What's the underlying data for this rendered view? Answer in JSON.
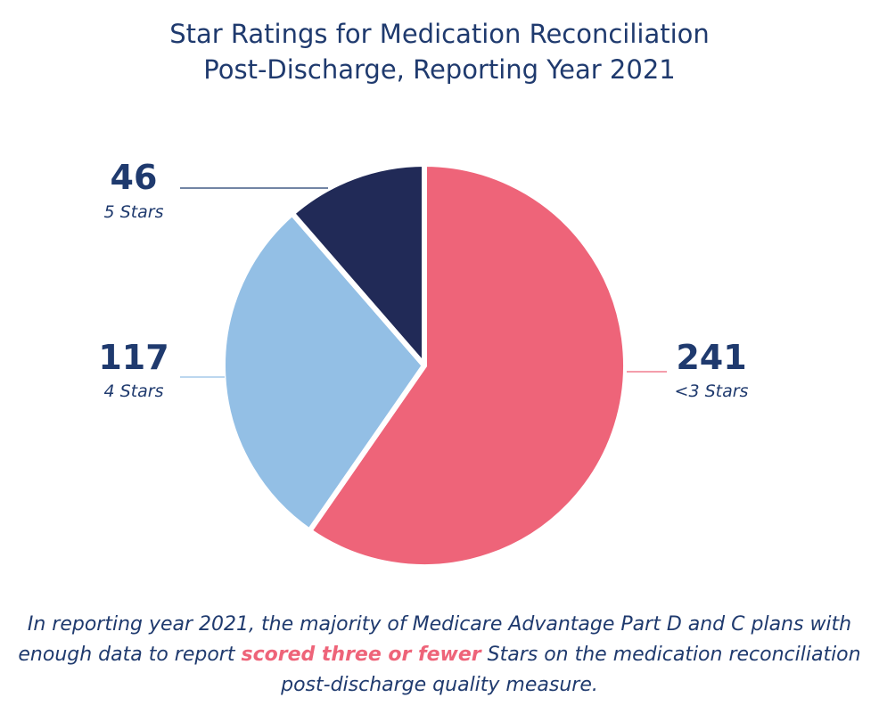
{
  "title": {
    "line1": "Star Ratings for Medication Reconciliation",
    "line2": "Post-Discharge, Reporting Year 2021"
  },
  "chart_data": {
    "type": "pie",
    "title": "Star Ratings for Medication Reconciliation Post-Discharge, Reporting Year 2021",
    "categories": [
      "<3 Stars",
      "4 Stars",
      "5 Stars"
    ],
    "values": [
      241,
      117,
      46
    ],
    "colors": [
      "#ee6479",
      "#93bfe5",
      "#212a57"
    ],
    "labels": [
      {
        "value": "241",
        "label": "<3 Stars",
        "side": "right"
      },
      {
        "value": "117",
        "label": "4 Stars",
        "side": "left"
      },
      {
        "value": "46",
        "label": "5 Stars",
        "side": "left"
      }
    ]
  },
  "caption": {
    "before": "In reporting year 2021, the majority of Medicare Advantage Part D and C plans with enough data to report ",
    "highlight": "scored three or fewer",
    "after": " Stars on the medication reconciliation post-discharge quality measure."
  },
  "colors": {
    "text": "#1f3a6e",
    "highlight": "#ee6479",
    "leader_dark": "#1f3a6e",
    "leader_light": "#93bfe5"
  }
}
